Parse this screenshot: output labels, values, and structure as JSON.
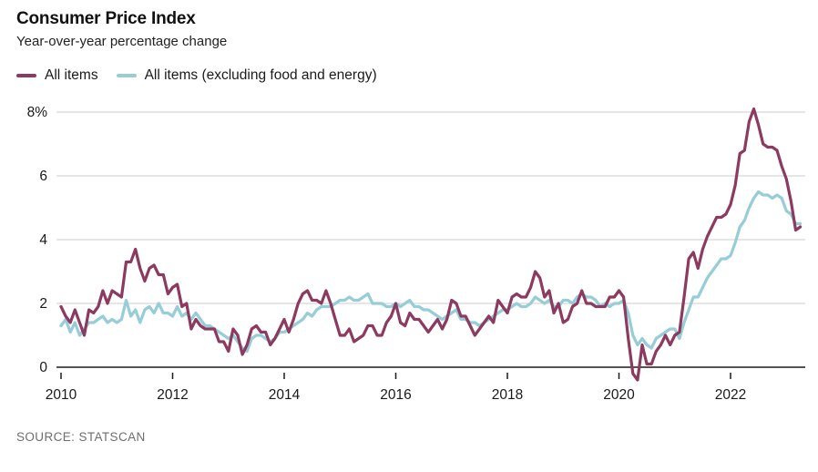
{
  "header": {
    "title": "Consumer Price Index",
    "subtitle": "Year-over-year percentage change"
  },
  "legend": {
    "items": [
      {
        "label": "All items",
        "color": "#8c3a60"
      },
      {
        "label": "All items (excluding food and energy)",
        "color": "#96cdd8"
      }
    ]
  },
  "source": {
    "text": "SOURCE: STATSCAN"
  },
  "chart_data": {
    "type": "line",
    "title": "Consumer Price Index",
    "subtitle": "Year-over-year percentage change",
    "xlabel": "",
    "ylabel": "Year-over-year percentage change (%)",
    "x_start": "2010-01",
    "x_end": "2023-04",
    "x_frequency": "monthly",
    "x_tick_years": [
      2010,
      2012,
      2014,
      2016,
      2018,
      2020,
      2022
    ],
    "y_ticks": [
      0,
      2,
      4,
      6,
      8
    ],
    "y_tick_labels": [
      "0",
      "2",
      "4",
      "6",
      "8%"
    ],
    "ylim": [
      -0.6,
      8.4
    ],
    "grid": "horizontal",
    "grid_color": "#cccccc",
    "axis_color": "#1a1a1a",
    "legend_position": "top-left",
    "series": [
      {
        "id": "all-items",
        "name": "All items",
        "color": "#8c3a60",
        "values": [
          1.9,
          1.6,
          1.4,
          1.8,
          1.4,
          1.0,
          1.8,
          1.7,
          1.9,
          2.4,
          2.0,
          2.4,
          2.3,
          2.2,
          3.3,
          3.3,
          3.7,
          3.1,
          2.7,
          3.1,
          3.2,
          2.9,
          2.9,
          2.3,
          2.5,
          2.6,
          1.9,
          2.0,
          1.2,
          1.5,
          1.3,
          1.2,
          1.2,
          1.2,
          0.8,
          0.8,
          0.5,
          1.2,
          1.0,
          0.4,
          0.7,
          1.2,
          1.3,
          1.1,
          1.1,
          0.7,
          0.9,
          1.2,
          1.5,
          1.1,
          1.5,
          2.0,
          2.3,
          2.4,
          2.1,
          2.1,
          2.0,
          2.4,
          2.0,
          1.5,
          1.0,
          1.0,
          1.2,
          0.8,
          0.9,
          1.0,
          1.3,
          1.3,
          1.0,
          1.0,
          1.4,
          1.6,
          2.0,
          1.4,
          1.3,
          1.7,
          1.5,
          1.5,
          1.3,
          1.1,
          1.3,
          1.5,
          1.2,
          1.5,
          2.1,
          2.0,
          1.6,
          1.6,
          1.3,
          1.0,
          1.2,
          1.4,
          1.6,
          1.4,
          2.1,
          1.9,
          1.7,
          2.2,
          2.3,
          2.2,
          2.2,
          2.5,
          3.0,
          2.8,
          2.2,
          2.4,
          1.7,
          2.0,
          1.4,
          1.5,
          1.9,
          2.0,
          2.4,
          2.0,
          2.0,
          1.9,
          1.9,
          1.9,
          2.2,
          2.2,
          2.4,
          2.2,
          0.9,
          -0.2,
          -0.4,
          0.7,
          0.1,
          0.1,
          0.5,
          0.7,
          1.0,
          0.7,
          1.0,
          1.1,
          2.2,
          3.4,
          3.6,
          3.1,
          3.7,
          4.1,
          4.4,
          4.7,
          4.7,
          4.8,
          5.1,
          5.7,
          6.7,
          6.8,
          7.7,
          8.1,
          7.6,
          7.0,
          6.9,
          6.9,
          6.8,
          6.3,
          5.9,
          5.2,
          4.3,
          4.4
        ]
      },
      {
        "id": "excl-food-energy",
        "name": "All items (excluding food and energy)",
        "color": "#96cdd8",
        "values": [
          1.3,
          1.5,
          1.1,
          1.4,
          1.0,
          1.2,
          1.4,
          1.4,
          1.5,
          1.6,
          1.4,
          1.5,
          1.4,
          1.5,
          2.1,
          1.6,
          1.8,
          1.4,
          1.8,
          1.9,
          1.7,
          2.0,
          1.7,
          1.7,
          1.6,
          1.9,
          1.6,
          1.7,
          1.5,
          1.7,
          1.5,
          1.3,
          1.3,
          1.2,
          1.1,
          1.0,
          0.9,
          1.0,
          0.8,
          0.6,
          0.5,
          0.9,
          1.0,
          1.0,
          0.9,
          0.8,
          0.9,
          1.1,
          1.1,
          1.2,
          1.3,
          1.4,
          1.5,
          1.7,
          1.6,
          1.8,
          1.9,
          1.9,
          1.9,
          2.0,
          2.1,
          2.1,
          2.2,
          2.1,
          2.1,
          2.2,
          2.3,
          2.0,
          2.0,
          2.0,
          1.9,
          1.9,
          2.0,
          1.9,
          2.0,
          2.1,
          1.9,
          1.9,
          1.8,
          1.8,
          1.7,
          1.6,
          1.5,
          1.6,
          1.7,
          1.8,
          1.5,
          1.5,
          1.4,
          1.4,
          1.3,
          1.4,
          1.5,
          1.6,
          1.7,
          1.8,
          1.8,
          1.9,
          2.0,
          1.9,
          1.9,
          2.0,
          2.2,
          2.1,
          2.0,
          2.1,
          1.9,
          1.9,
          2.1,
          2.1,
          2.0,
          2.2,
          2.3,
          2.2,
          2.2,
          2.1,
          1.9,
          2.0,
          1.9,
          2.0,
          2.0,
          2.1,
          1.7,
          1.0,
          0.7,
          0.9,
          0.7,
          0.6,
          0.9,
          1.0,
          1.1,
          1.2,
          1.2,
          0.9,
          1.4,
          1.8,
          2.2,
          2.2,
          2.5,
          2.8,
          3.0,
          3.2,
          3.4,
          3.4,
          3.5,
          3.9,
          4.4,
          4.6,
          5.0,
          5.3,
          5.5,
          5.4,
          5.4,
          5.3,
          5.4,
          5.3,
          4.9,
          4.8,
          4.5,
          4.5
        ]
      }
    ]
  }
}
